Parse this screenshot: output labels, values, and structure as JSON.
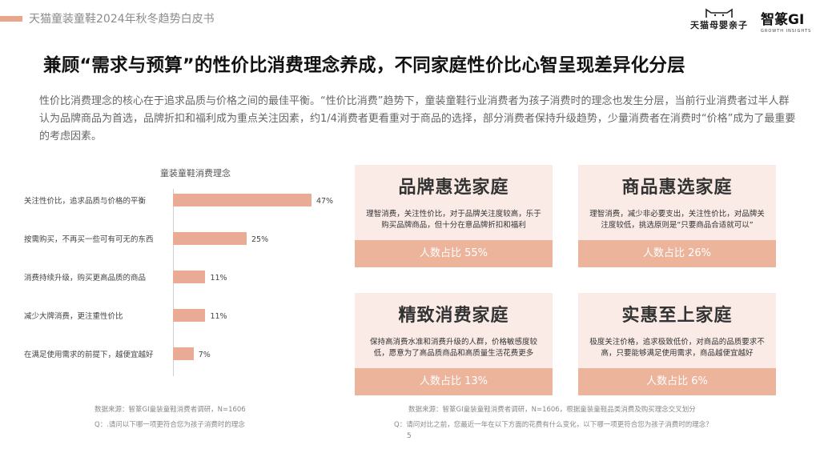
{
  "header": {
    "report_title": "天猫童装童鞋2024年秋冬趋势白皮书",
    "logo_tmall_text": "天猫母婴亲子",
    "logo_gi_text": "智篆GI",
    "logo_gi_sub": "GROWTH INSIGHTS"
  },
  "headline": "兼顾“需求与预算”的性价比消费理念养成，不同家庭性价比心智呈现差异化分层",
  "intro": "性价比消费理念的核心在于追求品质与价格之间的最佳平衡。“性价比消费”趋势下，童装童鞋行业消费者为孩子消费时的理念也发生分层，当前行业消费者过半人群认为品牌商品为首选，品牌折扣和福利成为重点关注因素，约1/4消费者更看重对于商品的选择，部分消费者保持升级趋势，少量消费者在消费时“价格”成为了最重要的考虑因素。",
  "chart_data": {
    "type": "bar",
    "orientation": "horizontal",
    "title": "童装童鞋消费理念",
    "categories": [
      "关注性价比，追求品质与价格的平衡",
      "按需购买，不再买一些可有可无的东西",
      "消费持续升级，购买更高品质的商品",
      "减少大牌消费，更注重性价比",
      "在满足使用需求的前提下，越便宜越好"
    ],
    "values": [
      47,
      25,
      11,
      11,
      7
    ],
    "value_labels": [
      "47%",
      "25%",
      "11%",
      "11%",
      "7%"
    ],
    "unit": "%",
    "xlim": [
      0,
      50
    ],
    "bar_color": "#e9ab93"
  },
  "cards": [
    {
      "title": "品牌惠选家庭",
      "desc": "理智消费，关注性价比，对于品牌关注度较高，乐于购买品牌商品，但十分在意品牌折扣和福利",
      "share": "人数占比 55%"
    },
    {
      "title": "商品惠选家庭",
      "desc": "理智消费，减少非必要支出，关注性价比，对品牌关注度较低，挑选原则是“只要商品合适就可以”",
      "share": "人数占比 26%"
    },
    {
      "title": "精致消费家庭",
      "desc": "保持高消费水准和消费升级的人群，价格敏感度较低，愿意为了高品质商品和高质量生活花费更多",
      "share": "人数占比 13%"
    },
    {
      "title": "实惠至上家庭",
      "desc": "极度关注价格，追求极致低价，对商品的品质要求不高，只要能够满足使用需求，商品越便宜越好",
      "share": "人数占比 6%"
    }
  ],
  "notes": {
    "left_source": "数据来源：智篆GI童装童鞋消费者调研，N=1606",
    "left_question": "Q：.请问以下哪一项更符合您为孩子消费时的理念",
    "right_source": "数据来源：智篆GI童装童鞋消费者调研，N=1606，根据童装童鞋品类消费及购买理念交叉划分",
    "right_question": "Q：请问对比之前，您最近一年在以下方面的花费有什么变化，以下哪一项更符合您为孩子消费时的理念？",
    "page_number": "5"
  },
  "colors": {
    "accent": "#e9a68a",
    "bar": "#e9ab93",
    "card_bg": "#fbebe7",
    "card_strip": "#edb49c"
  }
}
